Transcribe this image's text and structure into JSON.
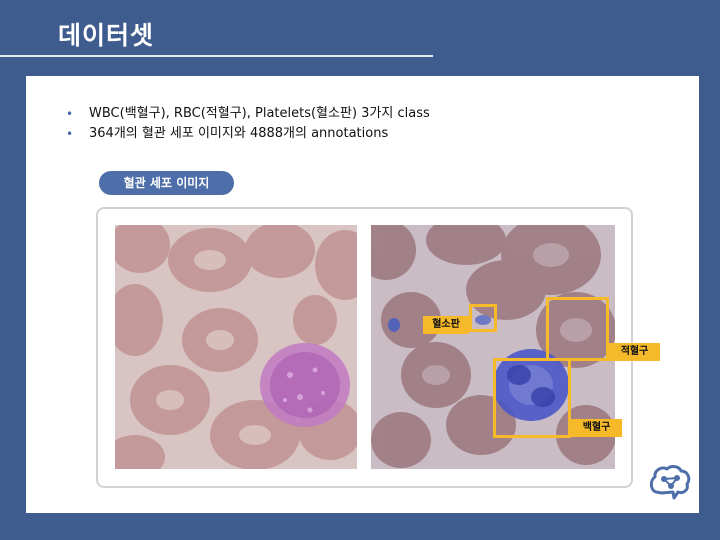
{
  "title": "데이터셋",
  "bullets": [
    "WBC(백혈구), RBC(적혈구), Platelets(혈소판) 3가지 class",
    "364개의 혈관 세포 이미지와 4888개의 annotations"
  ],
  "section_label": "혈관 세포 이미지",
  "annotations": {
    "platelet": "혈소판",
    "rbc": "적혈구",
    "wbc": "백혈구"
  },
  "colors": {
    "background": "#3f5c8f",
    "accent": "#4d6ea9",
    "box": "#f5b92a"
  }
}
